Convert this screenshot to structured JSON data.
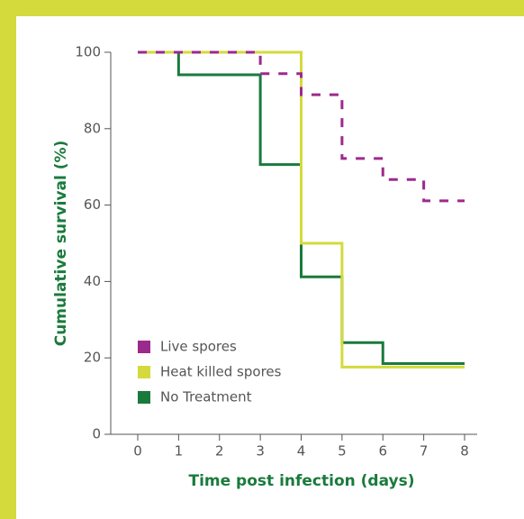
{
  "chart_data": {
    "type": "line",
    "step": "post",
    "x_label": "Time post infection (days)",
    "y_label": "Cumulative survival (%)",
    "x": [
      0,
      1,
      2,
      3,
      4,
      5,
      6,
      7,
      8
    ],
    "series": [
      {
        "name": "Live spores",
        "color": "#9c2a8c",
        "values": [
          100,
          100,
          100,
          94.4,
          88.9,
          72.2,
          66.7,
          61.1,
          61.1
        ]
      },
      {
        "name": "Heat killed spores",
        "color": "#d4da3c",
        "values": [
          100,
          100,
          100,
          100,
          50,
          17.6,
          17.6,
          17.6,
          17.6
        ]
      },
      {
        "name": "No Treatment",
        "color": "#1a7a3c",
        "values": [
          100,
          94.1,
          94.1,
          70.6,
          41.2,
          24,
          18.5,
          18.5,
          18.5
        ]
      }
    ],
    "xlim": [
      0,
      8
    ],
    "xticks": [
      0,
      1,
      2,
      3,
      4,
      5,
      6,
      7,
      8
    ],
    "ylim": [
      0,
      100
    ],
    "yticks": [
      0,
      20,
      40,
      60,
      80,
      100
    ]
  }
}
